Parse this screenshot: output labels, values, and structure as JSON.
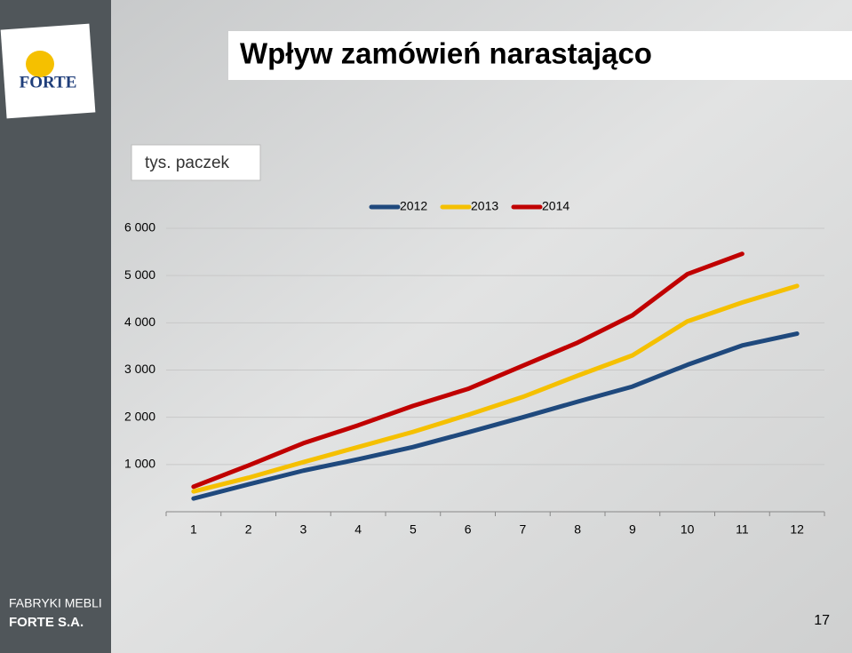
{
  "slide": {
    "logo": "FORTE",
    "title": "Wpływ zamówień narastająco",
    "company_line1": "FABRYKI MEBLI",
    "company_line2": "FORTE S.A.",
    "page_number": "17"
  },
  "chart_data": {
    "type": "line",
    "y_label": "tys. paczek",
    "categories": [
      "1",
      "2",
      "3",
      "4",
      "5",
      "6",
      "7",
      "8",
      "9",
      "10",
      "11",
      "12"
    ],
    "series": [
      {
        "name": "2012",
        "color": "#1f497d",
        "values": [
          280,
          580,
          870,
          1110,
          1370,
          1680,
          2000,
          2330,
          2650,
          3110,
          3520,
          3770
        ]
      },
      {
        "name": "2013",
        "color": "#f5c000",
        "values": [
          430,
          720,
          1050,
          1370,
          1690,
          2050,
          2430,
          2880,
          3310,
          4030,
          4430,
          4780
        ]
      },
      {
        "name": "2014",
        "color": "#c00000",
        "values": [
          530,
          980,
          1450,
          1830,
          2240,
          2600,
          3090,
          3580,
          4160,
          5030,
          5460,
          null
        ]
      }
    ],
    "ylim": [
      0,
      6000
    ],
    "yticks": [
      {
        "value": 1000,
        "label": "1 000"
      },
      {
        "value": 2000,
        "label": "2 000"
      },
      {
        "value": 3000,
        "label": "3 000"
      },
      {
        "value": 4000,
        "label": "4 000"
      },
      {
        "value": 5000,
        "label": "5 000"
      },
      {
        "value": 6000,
        "label": "6 000"
      }
    ],
    "grid": true,
    "legend": "top"
  }
}
